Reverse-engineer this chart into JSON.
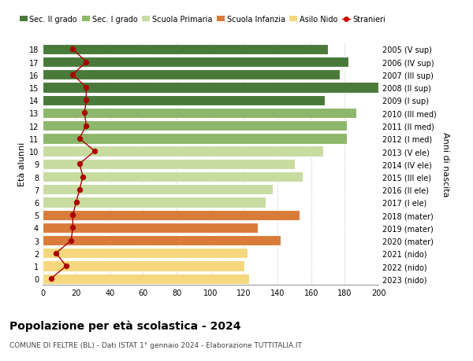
{
  "ages": [
    0,
    1,
    2,
    3,
    4,
    5,
    6,
    7,
    8,
    9,
    10,
    11,
    12,
    13,
    14,
    15,
    16,
    17,
    18
  ],
  "years_labels": [
    "2023 (nido)",
    "2022 (nido)",
    "2021 (nido)",
    "2020 (mater)",
    "2019 (mater)",
    "2018 (mater)",
    "2017 (I ele)",
    "2016 (II ele)",
    "2015 (III ele)",
    "2014 (IV ele)",
    "2013 (V ele)",
    "2012 (I med)",
    "2011 (II med)",
    "2010 (III med)",
    "2009 (I sup)",
    "2008 (II sup)",
    "2007 (III sup)",
    "2006 (IV sup)",
    "2005 (V sup)"
  ],
  "bar_values": [
    123,
    120,
    122,
    142,
    128,
    153,
    133,
    137,
    155,
    150,
    167,
    181,
    181,
    187,
    168,
    200,
    177,
    182,
    170
  ],
  "bar_colors": [
    "#f5d87e",
    "#f5d87e",
    "#f5d87e",
    "#d97b3a",
    "#d97b3a",
    "#d97b3a",
    "#c8dba0",
    "#c8dba0",
    "#c8dba0",
    "#c8dba0",
    "#c8dba0",
    "#8db86b",
    "#8db86b",
    "#8db86b",
    "#4a7a3a",
    "#4a7a3a",
    "#4a7a3a",
    "#4a7a3a",
    "#4a7a3a"
  ],
  "stranieri_values": [
    5,
    14,
    8,
    17,
    18,
    18,
    20,
    22,
    24,
    22,
    31,
    22,
    26,
    25,
    26,
    26,
    18,
    26,
    18
  ],
  "legend_labels": [
    "Sec. II grado",
    "Sec. I grado",
    "Scuola Primaria",
    "Scuola Infanzia",
    "Asilo Nido",
    "Stranieri"
  ],
  "legend_colors": [
    "#4a7a3a",
    "#8db86b",
    "#c8dba0",
    "#d97b3a",
    "#f5d87e",
    "#cc0000"
  ],
  "title": "Popolazione per età scolastica - 2024",
  "subtitle": "COMUNE DI FELTRE (BL) - Dati ISTAT 1° gennaio 2024 - Elaborazione TUTTITALIA.IT",
  "ylabel_left": "Età alunni",
  "ylabel_right": "Anni di nascita",
  "xlim": [
    0,
    200
  ],
  "xticks": [
    0,
    20,
    40,
    60,
    80,
    100,
    120,
    140,
    160,
    180,
    200
  ],
  "bg_color": "#ffffff",
  "grid_color": "#cccccc"
}
